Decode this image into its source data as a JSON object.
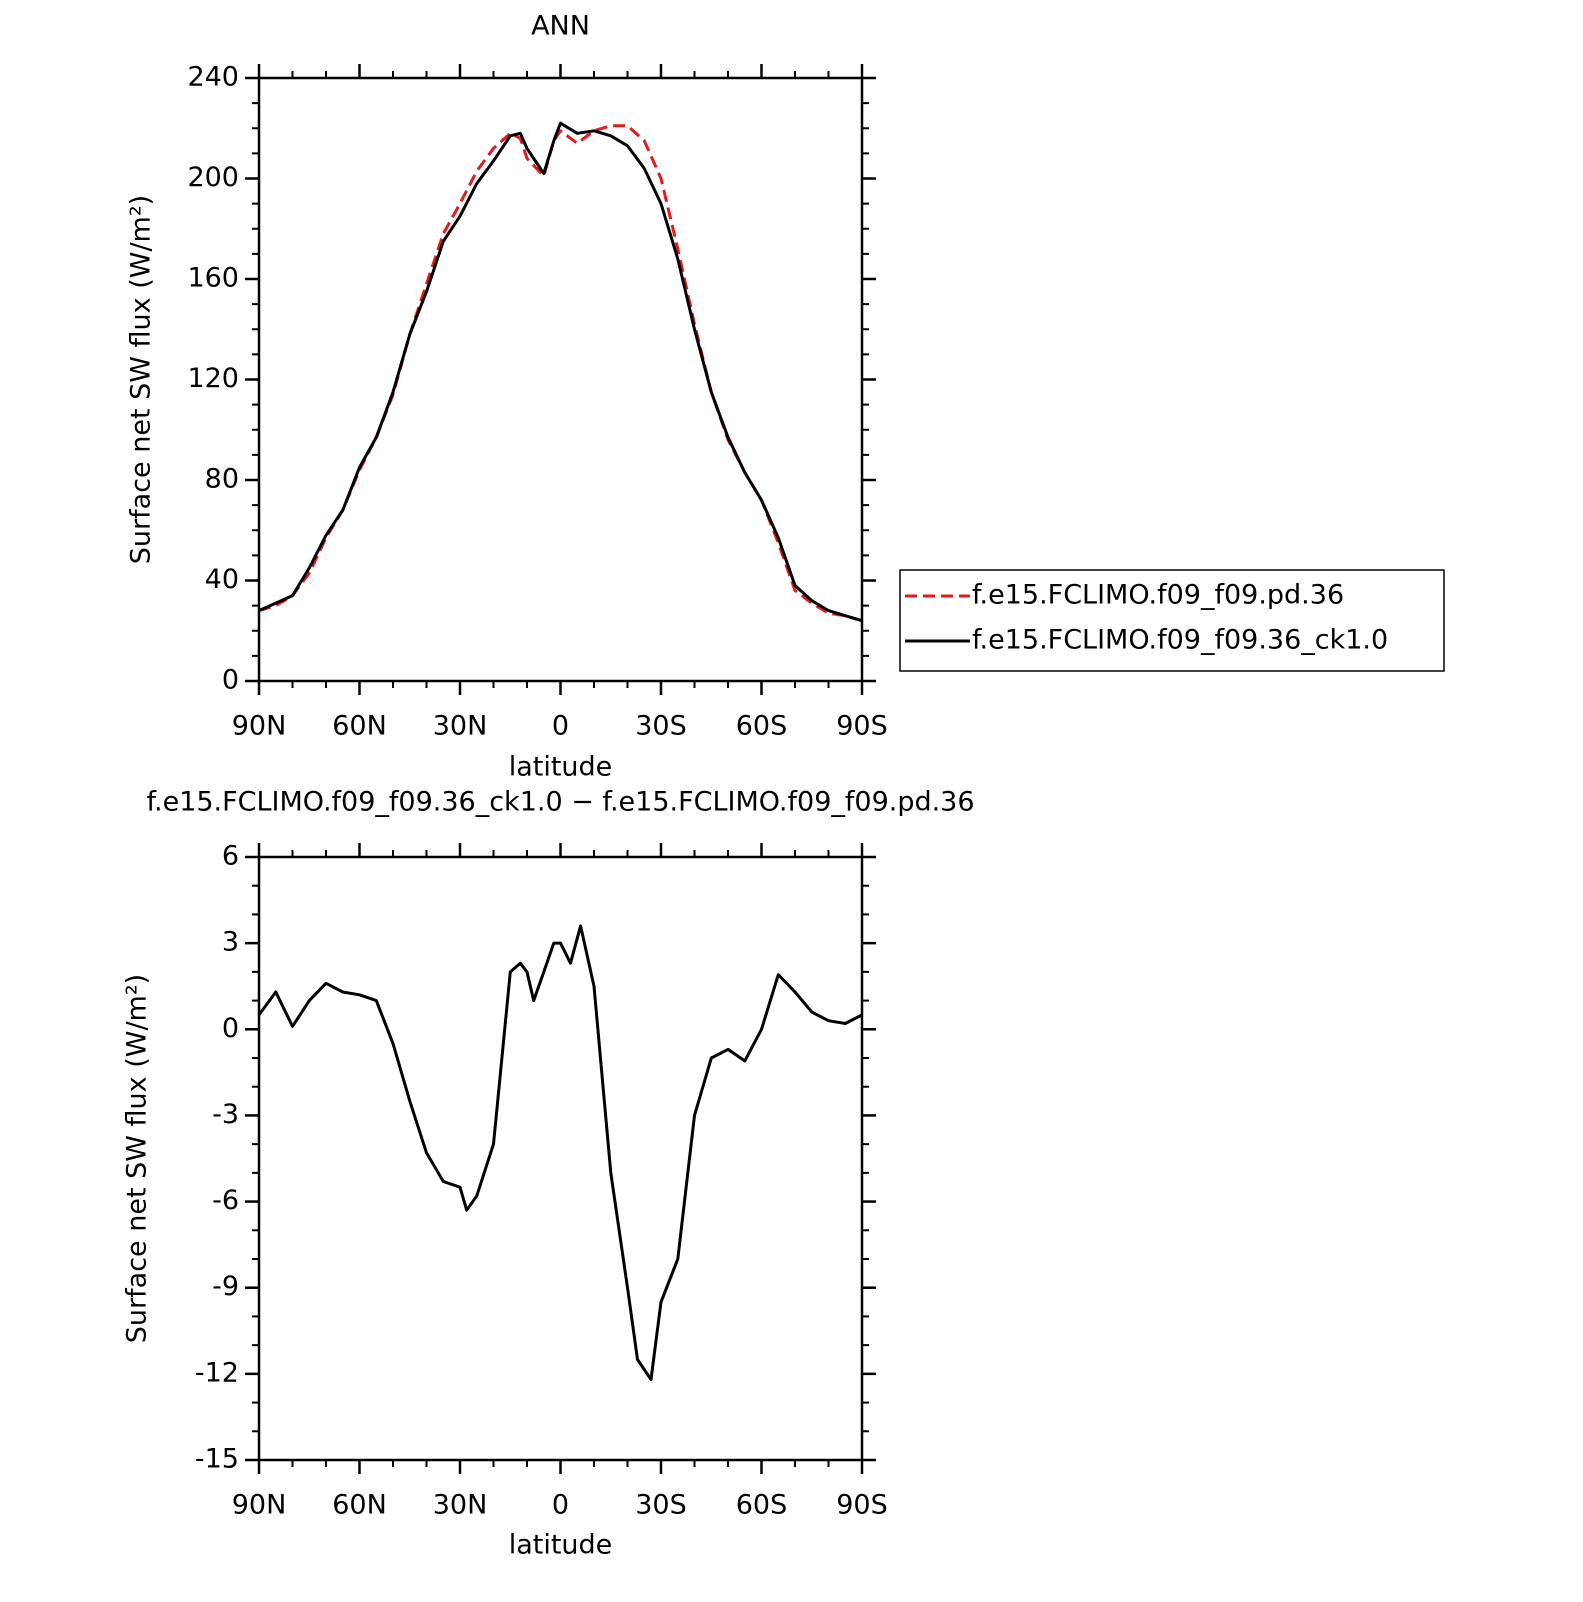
{
  "chart_data": [
    {
      "type": "line",
      "title": "ANN",
      "ylabel": "Surface net SW flux (W/m²)",
      "xlabel": "latitude",
      "x": [
        90,
        85,
        80,
        75,
        70,
        65,
        60,
        55,
        50,
        45,
        40,
        35,
        30,
        25,
        20,
        15,
        12,
        10,
        5,
        2,
        0,
        -5,
        -10,
        -15,
        -20,
        -25,
        -30,
        -35,
        -40,
        -45,
        -50,
        -55,
        -60,
        -65,
        -70,
        -75,
        -80,
        -85,
        -90
      ],
      "series": [
        {
          "name": "f.e15.FCLIMO.f09_f09.pd.36",
          "color": "#e41a1c",
          "dash": true,
          "values": [
            28,
            30,
            34,
            43,
            57,
            68,
            84,
            97,
            114,
            138,
            158,
            178,
            190,
            203,
            212,
            218,
            216,
            208,
            201,
            215,
            219,
            214,
            219,
            221,
            221,
            215,
            200,
            172,
            142,
            115,
            96,
            83,
            72,
            55,
            36,
            31,
            27,
            26,
            24
          ]
        },
        {
          "name": "f.e15.FCLIMO.f09_f09.36_ck1.0",
          "color": "#000000",
          "dash": false,
          "values": [
            28,
            31,
            34,
            45,
            58,
            68,
            85,
            97,
            115,
            138,
            155,
            175,
            185,
            198,
            207,
            217,
            218,
            212,
            202,
            215,
            222,
            218,
            219,
            217,
            213,
            204,
            190,
            168,
            140,
            115,
            97,
            83,
            72,
            57,
            38,
            32,
            28,
            26,
            24
          ]
        }
      ],
      "xlim": [
        90,
        -90
      ],
      "xticks": [
        {
          "value": 90,
          "label": "90N"
        },
        {
          "value": 60,
          "label": "60N"
        },
        {
          "value": 30,
          "label": "30N"
        },
        0,
        {
          "value": -30,
          "label": "30S"
        },
        {
          "value": -60,
          "label": "60S"
        },
        {
          "value": -90,
          "label": "90S"
        }
      ],
      "ylim": [
        0,
        240
      ],
      "yticks": [
        0,
        40,
        80,
        120,
        160,
        200,
        240
      ],
      "legend": "right"
    },
    {
      "type": "line",
      "title": "f.e15.FCLIMO.f09_f09.36_ck1.0 − f.e15.FCLIMO.f09_f09.pd.36",
      "ylabel": "Surface net SW flux (W/m²)",
      "xlabel": "latitude",
      "x": [
        90,
        85,
        80,
        75,
        70,
        65,
        60,
        55,
        50,
        45,
        40,
        35,
        30,
        28,
        25,
        20,
        15,
        12,
        10,
        8,
        5,
        2,
        0,
        -3,
        -6,
        -10,
        -15,
        -20,
        -23,
        -27,
        -30,
        -35,
        -40,
        -45,
        -50,
        -55,
        -60,
        -65,
        -70,
        -75,
        -80,
        -85,
        -90
      ],
      "series": [
        {
          "color": "#000000",
          "dash": false,
          "values": [
            0.5,
            1.3,
            0.1,
            1.0,
            1.6,
            1.3,
            1.2,
            1.0,
            -0.5,
            -2.5,
            -4.3,
            -5.3,
            -5.5,
            -6.3,
            -5.8,
            -4.0,
            2.0,
            2.3,
            2.0,
            1.0,
            2.0,
            3.0,
            3.0,
            2.3,
            3.6,
            1.5,
            -5.0,
            -9.0,
            -11.5,
            -12.2,
            -9.5,
            -8.0,
            -3.0,
            -1.0,
            -0.7,
            -1.1,
            0.0,
            1.9,
            1.3,
            0.6,
            0.3,
            0.2,
            0.5
          ]
        }
      ],
      "xlim": [
        90,
        -90
      ],
      "xticks": [
        {
          "value": 90,
          "label": "90N"
        },
        {
          "value": 60,
          "label": "60N"
        },
        {
          "value": 30,
          "label": "30N"
        },
        0,
        {
          "value": -30,
          "label": "30S"
        },
        {
          "value": -60,
          "label": "60S"
        },
        {
          "value": -90,
          "label": "90S"
        }
      ],
      "ylim": [
        -15,
        6
      ],
      "yticks": [
        -15,
        -12,
        -9,
        -6,
        -3,
        0,
        3,
        6
      ]
    }
  ]
}
